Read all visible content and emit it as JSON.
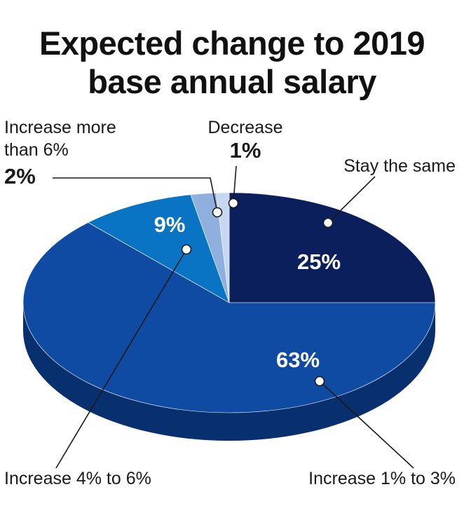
{
  "chart_data": {
    "type": "pie",
    "title": [
      "Expected change to 2019",
      "base annual salary"
    ],
    "slices": [
      {
        "label": "Stay the same",
        "value": 25,
        "value_label": "25%",
        "color": "#0b1f5c",
        "side": "#061442"
      },
      {
        "label": "Increase 1% to 3%",
        "value": 63,
        "value_label": "63%",
        "color": "#0f4ba2",
        "side": "#08306f"
      },
      {
        "label": "Increase 4% to 6%",
        "value": 9,
        "value_label": "9%",
        "color": "#0a74c4",
        "side": "#075590"
      },
      {
        "label_lines": [
          "Increase more",
          "than 6%"
        ],
        "value": 2,
        "value_label": "2%",
        "color": "#8fb0df",
        "side": "#6b8cc0"
      },
      {
        "label": "Decrease",
        "value": 1,
        "value_label": "1%",
        "color": "#c6d8f1",
        "side": "#9db3d6"
      }
    ]
  }
}
